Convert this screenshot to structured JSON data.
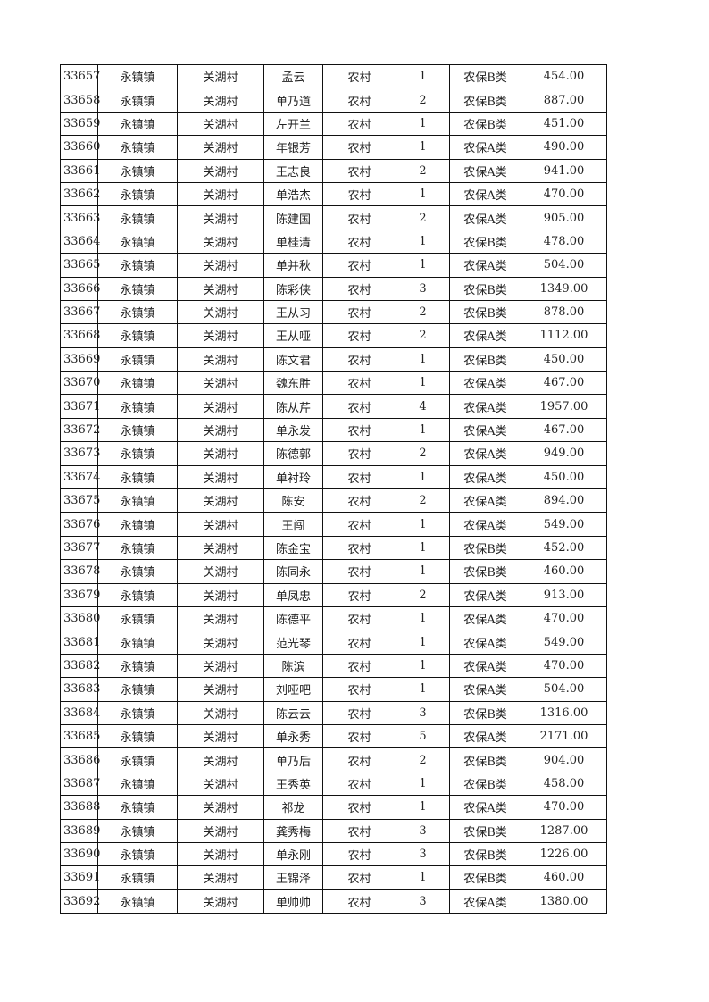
{
  "rows": [
    [
      "33657",
      "永镇镇",
      "关湖村",
      "孟云",
      "农村",
      "1",
      "农保B类",
      "454.00"
    ],
    [
      "33658",
      "永镇镇",
      "关湖村",
      "单乃道",
      "农村",
      "2",
      "农保B类",
      "887.00"
    ],
    [
      "33659",
      "永镇镇",
      "关湖村",
      "左开兰",
      "农村",
      "1",
      "农保B类",
      "451.00"
    ],
    [
      "33660",
      "永镇镇",
      "关湖村",
      "年银芳",
      "农村",
      "1",
      "农保A类",
      "490.00"
    ],
    [
      "33661",
      "永镇镇",
      "关湖村",
      "王志良",
      "农村",
      "2",
      "农保A类",
      "941.00"
    ],
    [
      "33662",
      "永镇镇",
      "关湖村",
      "单浩杰",
      "农村",
      "1",
      "农保A类",
      "470.00"
    ],
    [
      "33663",
      "永镇镇",
      "关湖村",
      "陈建国",
      "农村",
      "2",
      "农保A类",
      "905.00"
    ],
    [
      "33664",
      "永镇镇",
      "关湖村",
      "单桂清",
      "农村",
      "1",
      "农保B类",
      "478.00"
    ],
    [
      "33665",
      "永镇镇",
      "关湖村",
      "单并秋",
      "农村",
      "1",
      "农保A类",
      "504.00"
    ],
    [
      "33666",
      "永镇镇",
      "关湖村",
      "陈彩侠",
      "农村",
      "3",
      "农保B类",
      "1349.00"
    ],
    [
      "33667",
      "永镇镇",
      "关湖村",
      "王从习",
      "农村",
      "2",
      "农保B类",
      "878.00"
    ],
    [
      "33668",
      "永镇镇",
      "关湖村",
      "王从哑",
      "农村",
      "2",
      "农保A类",
      "1112.00"
    ],
    [
      "33669",
      "永镇镇",
      "关湖村",
      "陈文君",
      "农村",
      "1",
      "农保B类",
      "450.00"
    ],
    [
      "33670",
      "永镇镇",
      "关湖村",
      "魏东胜",
      "农村",
      "1",
      "农保A类",
      "467.00"
    ],
    [
      "33671",
      "永镇镇",
      "关湖村",
      "陈从芹",
      "农村",
      "4",
      "农保A类",
      "1957.00"
    ],
    [
      "33672",
      "永镇镇",
      "关湖村",
      "单永发",
      "农村",
      "1",
      "农保A类",
      "467.00"
    ],
    [
      "33673",
      "永镇镇",
      "关湖村",
      "陈德郭",
      "农村",
      "2",
      "农保A类",
      "949.00"
    ],
    [
      "33674",
      "永镇镇",
      "关湖村",
      "单衬玲",
      "农村",
      "1",
      "农保A类",
      "450.00"
    ],
    [
      "33675",
      "永镇镇",
      "关湖村",
      "陈安",
      "农村",
      "2",
      "农保A类",
      "894.00"
    ],
    [
      "33676",
      "永镇镇",
      "关湖村",
      "王闯",
      "农村",
      "1",
      "农保A类",
      "549.00"
    ],
    [
      "33677",
      "永镇镇",
      "关湖村",
      "陈金宝",
      "农村",
      "1",
      "农保B类",
      "452.00"
    ],
    [
      "33678",
      "永镇镇",
      "关湖村",
      "陈同永",
      "农村",
      "1",
      "农保B类",
      "460.00"
    ],
    [
      "33679",
      "永镇镇",
      "关湖村",
      "单凤忠",
      "农村",
      "2",
      "农保A类",
      "913.00"
    ],
    [
      "33680",
      "永镇镇",
      "关湖村",
      "陈德平",
      "农村",
      "1",
      "农保A类",
      "470.00"
    ],
    [
      "33681",
      "永镇镇",
      "关湖村",
      "范光琴",
      "农村",
      "1",
      "农保A类",
      "549.00"
    ],
    [
      "33682",
      "永镇镇",
      "关湖村",
      "陈滨",
      "农村",
      "1",
      "农保A类",
      "470.00"
    ],
    [
      "33683",
      "永镇镇",
      "关湖村",
      "刘哑吧",
      "农村",
      "1",
      "农保A类",
      "504.00"
    ],
    [
      "33684",
      "永镇镇",
      "关湖村",
      "陈云云",
      "农村",
      "3",
      "农保B类",
      "1316.00"
    ],
    [
      "33685",
      "永镇镇",
      "关湖村",
      "单永秀",
      "农村",
      "5",
      "农保A类",
      "2171.00"
    ],
    [
      "33686",
      "永镇镇",
      "关湖村",
      "单乃后",
      "农村",
      "2",
      "农保B类",
      "904.00"
    ],
    [
      "33687",
      "永镇镇",
      "关湖村",
      "王秀英",
      "农村",
      "1",
      "农保B类",
      "458.00"
    ],
    [
      "33688",
      "永镇镇",
      "关湖村",
      "祁龙",
      "农村",
      "1",
      "农保A类",
      "470.00"
    ],
    [
      "33689",
      "永镇镇",
      "关湖村",
      "龚秀梅",
      "农村",
      "3",
      "农保B类",
      "1287.00"
    ],
    [
      "33690",
      "永镇镇",
      "关湖村",
      "单永刚",
      "农村",
      "3",
      "农保B类",
      "1226.00"
    ],
    [
      "33691",
      "永镇镇",
      "关湖村",
      "王锦泽",
      "农村",
      "1",
      "农保B类",
      "460.00"
    ],
    [
      "33692",
      "永镇镇",
      "关湖村",
      "单帅帅",
      "农村",
      "3",
      "农保A类",
      "1380.00"
    ]
  ]
}
